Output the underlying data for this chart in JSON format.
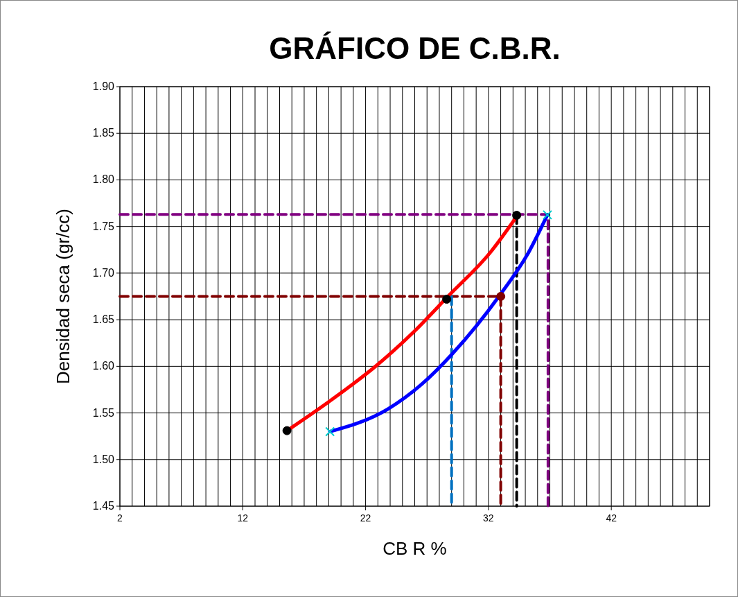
{
  "chart_data": {
    "type": "line",
    "title": "GRÁFICO DE C.B.R.",
    "xlabel": "CB R %",
    "ylabel": "Densidad seca (gr/cc)",
    "xlim": [
      2,
      50
    ],
    "ylim": [
      1.45,
      1.9
    ],
    "xticks": [
      2,
      {
        "value": 3,
        "label": null
      },
      {
        "value": 4,
        "label": null
      },
      {
        "value": 5,
        "label": null
      },
      {
        "value": 6,
        "label": null
      },
      {
        "value": 7,
        "label": null
      },
      {
        "value": 8,
        "label": null
      },
      {
        "value": 9,
        "label": null
      },
      {
        "value": 10,
        "label": null
      },
      {
        "value": 11,
        "label": null
      },
      12,
      {
        "value": 13,
        "label": null
      },
      {
        "value": 14,
        "label": null
      },
      {
        "value": 15,
        "label": null
      },
      {
        "value": 16,
        "label": null
      },
      {
        "value": 17,
        "label": null
      },
      {
        "value": 18,
        "label": null
      },
      {
        "value": 19,
        "label": null
      },
      {
        "value": 20,
        "label": null
      },
      {
        "value": 21,
        "label": null
      },
      22,
      {
        "value": 23,
        "label": null
      },
      {
        "value": 24,
        "label": null
      },
      {
        "value": 25,
        "label": null
      },
      {
        "value": 26,
        "label": null
      },
      {
        "value": 27,
        "label": null
      },
      {
        "value": 28,
        "label": null
      },
      {
        "value": 29,
        "label": null
      },
      {
        "value": 30,
        "label": null
      },
      {
        "value": 31,
        "label": null
      },
      32,
      {
        "value": 33,
        "label": null
      },
      {
        "value": 34,
        "label": null
      },
      {
        "value": 35,
        "label": null
      },
      {
        "value": 36,
        "label": null
      },
      {
        "value": 37,
        "label": null
      },
      {
        "value": 38,
        "label": null
      },
      {
        "value": 39,
        "label": null
      },
      {
        "value": 40,
        "label": null
      },
      {
        "value": 41,
        "label": null
      },
      42,
      {
        "value": 43,
        "label": null
      },
      {
        "value": 44,
        "label": null
      },
      {
        "value": 45,
        "label": null
      },
      {
        "value": 46,
        "label": null
      },
      {
        "value": 47,
        "label": null
      },
      {
        "value": 48,
        "label": null
      },
      {
        "value": 49,
        "label": null
      },
      {
        "value": 50,
        "label": null
      }
    ],
    "yticks": [
      {
        "value": 1.45,
        "label": "1.45"
      },
      {
        "value": 1.5,
        "label": "1.50"
      },
      1.55,
      {
        "value": 1.6,
        "label": "1.60"
      },
      1.65,
      {
        "value": 1.7,
        "label": "1.70"
      },
      1.75,
      {
        "value": 1.8,
        "label": "1.80"
      },
      1.85,
      {
        "value": 1.9,
        "label": "1.90"
      }
    ],
    "grid": true,
    "line_style": "solid",
    "marker": "none",
    "series": [
      {
        "type": "line",
        "line_style": "dashed",
        "color": "#800080",
        "x": [
          2,
          36.85,
          36.85
        ],
        "values": [
          1.763,
          1.763,
          1.45
        ]
      },
      {
        "type": "line",
        "line_style": "dashed",
        "color": "#800000",
        "x": [
          2,
          33,
          33
        ],
        "values": [
          1.675,
          1.675,
          1.45
        ]
      },
      {
        "type": "line",
        "line_style": "dashed",
        "color": "#000000",
        "x": [
          34.3,
          34.3
        ],
        "values": [
          1.762,
          1.45
        ]
      },
      {
        "type": "line",
        "line_style": "dashed",
        "color": "#0070c0",
        "x": [
          29,
          29
        ],
        "values": [
          1.675,
          1.45
        ]
      },
      {
        "color": "#ff0000",
        "x": [
          15.6,
          19,
          22.9,
          26,
          28.7,
          32.2,
          34.26
        ],
        "values": [
          1.531,
          1.562,
          1.601,
          1.638,
          1.675,
          1.723,
          1.76
        ]
      },
      {
        "color": "#0000ff",
        "x": [
          19.1,
          23.8,
          26.5,
          29.1,
          32.85,
          35.3,
          36.8
        ],
        "values": [
          1.53,
          1.554,
          1.58,
          1.614,
          1.675,
          1.723,
          1.7625
        ]
      },
      {
        "type": "scatter",
        "marker": "circle",
        "color": "#000000",
        "x": [
          15.6,
          34.3,
          28.6
        ],
        "values": [
          1.531,
          1.762,
          1.672
        ]
      },
      {
        "type": "scatter",
        "marker": "cross",
        "color": "#00cccc",
        "x": [
          19.1,
          36.8
        ],
        "values": [
          1.53,
          1.7625
        ]
      },
      {
        "type": "scatter",
        "marker": "circle",
        "color": "#800000",
        "x": [
          33
        ],
        "values": [
          1.675
        ]
      }
    ]
  }
}
